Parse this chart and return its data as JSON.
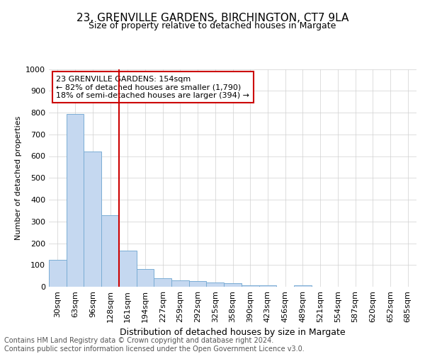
{
  "title": "23, GRENVILLE GARDENS, BIRCHINGTON, CT7 9LA",
  "subtitle": "Size of property relative to detached houses in Margate",
  "xlabel": "Distribution of detached houses by size in Margate",
  "ylabel": "Number of detached properties",
  "categories": [
    "30sqm",
    "63sqm",
    "96sqm",
    "128sqm",
    "161sqm",
    "194sqm",
    "227sqm",
    "259sqm",
    "292sqm",
    "325sqm",
    "358sqm",
    "390sqm",
    "423sqm",
    "456sqm",
    "489sqm",
    "521sqm",
    "554sqm",
    "587sqm",
    "620sqm",
    "652sqm",
    "685sqm"
  ],
  "values": [
    125,
    795,
    620,
    330,
    165,
    80,
    40,
    30,
    25,
    20,
    15,
    5,
    5,
    0,
    5,
    0,
    0,
    0,
    0,
    0,
    0
  ],
  "bar_color": "#c5d8f0",
  "bar_edge_color": "#7aadd4",
  "vline_x_index": 4,
  "vline_color": "#cc0000",
  "ylim": [
    0,
    1000
  ],
  "yticks": [
    0,
    100,
    200,
    300,
    400,
    500,
    600,
    700,
    800,
    900,
    1000
  ],
  "annotation_text": "23 GRENVILLE GARDENS: 154sqm\n← 82% of detached houses are smaller (1,790)\n18% of semi-detached houses are larger (394) →",
  "annotation_box_facecolor": "#ffffff",
  "annotation_box_edgecolor": "#cc0000",
  "footer_text": "Contains HM Land Registry data © Crown copyright and database right 2024.\nContains public sector information licensed under the Open Government Licence v3.0.",
  "background_color": "#ffffff",
  "grid_color": "#d0d0d0",
  "title_fontsize": 11,
  "subtitle_fontsize": 9,
  "xlabel_fontsize": 9,
  "ylabel_fontsize": 8,
  "tick_fontsize": 8,
  "ann_fontsize": 8,
  "footer_fontsize": 7
}
